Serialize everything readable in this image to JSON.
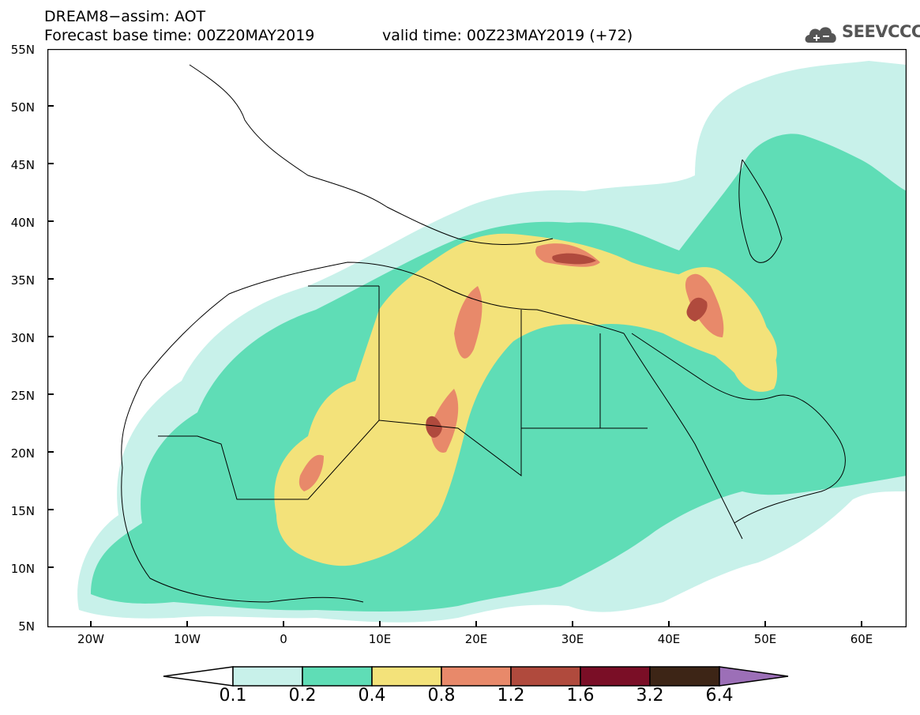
{
  "header": {
    "line1": "DREAM8−assim: AOT",
    "line2a": "Forecast base time: 00Z20MAY2019",
    "line2b": "valid time: 00Z23MAY2019 (+72)"
  },
  "logo": {
    "text": "SEEVCCC",
    "icon": "cloud-icon"
  },
  "axes": {
    "lat_labels": [
      "55N",
      "50N",
      "45N",
      "40N",
      "35N",
      "30N",
      "25N",
      "20N",
      "15N",
      "10N",
      "5N"
    ],
    "lon_labels": [
      "20W",
      "10W",
      "0",
      "10E",
      "20E",
      "30E",
      "40E",
      "50E",
      "60E"
    ],
    "lon_range": [
      -25,
      65
    ],
    "lat_range": [
      5,
      55
    ]
  },
  "legend": {
    "levels": [
      "0.1",
      "0.2",
      "0.4",
      "0.8",
      "1.2",
      "1.6",
      "3.2",
      "6.4"
    ],
    "colors": [
      "#ffffff",
      "#c8f1ea",
      "#5fddb6",
      "#f3e27a",
      "#e8896a",
      "#b04a3d",
      "#7a0e26",
      "#3d2516",
      "#9c6fb7"
    ]
  },
  "field_colors": {
    "c01": "#c8f1ea",
    "c02": "#5fddb6",
    "c04": "#f3e27a",
    "c08": "#e8896a",
    "c12": "#b04a3d"
  }
}
